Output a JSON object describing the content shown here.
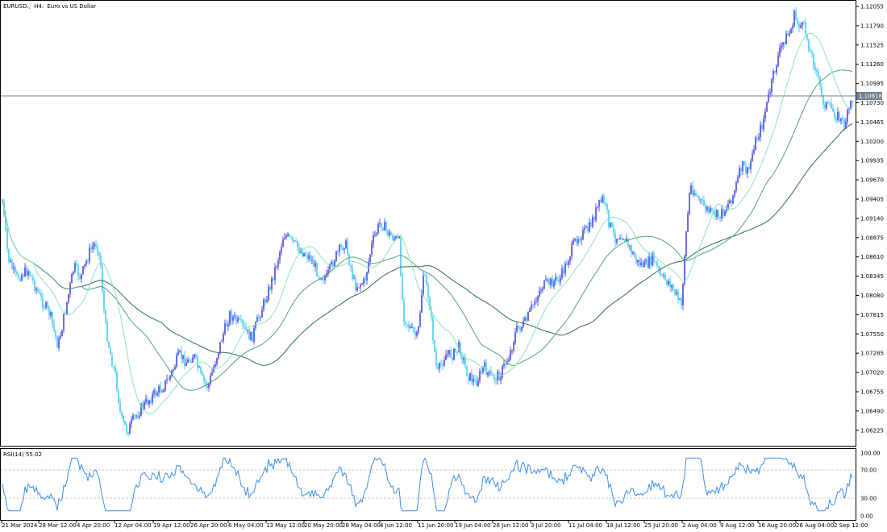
{
  "header": {
    "symbol": "EURUSD.,",
    "timeframe": "H4:",
    "description": "Euro vs US Dollar"
  },
  "price_axis": {
    "labels": [
      "1.12055",
      "1.11790",
      "1.11525",
      "1.11260",
      "1.10995",
      "1.10730",
      "1.10465",
      "1.10200",
      "1.09935",
      "1.09670",
      "1.09405",
      "1.09140",
      "1.08875",
      "1.08610",
      "1.08345",
      "1.08080",
      "1.07815",
      "1.07550",
      "1.07285",
      "1.07020",
      "1.06755",
      "1.06490",
      "1.06225"
    ],
    "current_price": "1.10818"
  },
  "rsi": {
    "label": "RSI(14) 55.02",
    "axis_labels": [
      "100.00",
      "70.00",
      "30.00",
      "0.00"
    ]
  },
  "time_axis": {
    "labels": [
      "21 Mar 2024",
      "28 Mar 12:00",
      "4 Apr 20:00",
      "12 Apr 04:00",
      "19 Apr 12:00",
      "26 Apr 20:00",
      "6 May 04:00",
      "13 May 12:00",
      "20 May 20:00",
      "28 May 04:00",
      "4 Jun 12:00",
      "11 Jun 20:00",
      "19 Jun 04:00",
      "26 Jun 12:00",
      "3 Jul 20:00",
      "11 Jul 04:00",
      "18 Jul 12:00",
      "25 Jul 20:00",
      "2 Aug 04:00",
      "9 Aug 12:00",
      "16 Aug 20:00",
      "26 Aug 04:00",
      "2 Sep 12:00"
    ]
  },
  "colors": {
    "candle_bull": "#5a5ae6",
    "candle_bear": "#5ad2f0",
    "ma_fast": "#8fe3b5",
    "ma_mid": "#4fa37a",
    "ma_slow": "#2f6b4e",
    "rsi_line": "#3a8fe8",
    "price_line": "#708090",
    "price_tag_bg": "#708090"
  }
}
